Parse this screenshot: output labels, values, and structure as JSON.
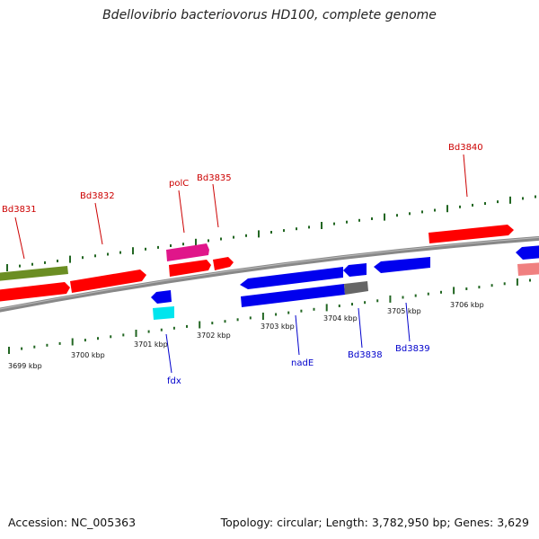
{
  "title": "Bdellovibrio bacteriovorus HD100, complete genome",
  "footer": {
    "accession": "Accession: NC_005363",
    "summary": "Topology: circular; Length: 3,782,950 bp; Genes: 3,629"
  },
  "colors": {
    "forward_label": "#cc0000",
    "reverse_label": "#0000cc",
    "backbone": "#888888",
    "tick": "#226622",
    "red_gene": "#ff0000",
    "blue_gene": "#0000ee",
    "olive_gene": "#6b8e23",
    "magenta_gene": "#e0168a",
    "cyan_gene": "#00e5ee",
    "salmon_gene": "#f08080",
    "gray_segment": "#666666"
  },
  "scale_labels": [
    {
      "text": "3699 kbp"
    },
    {
      "text": "3700 kbp"
    },
    {
      "text": "3701 kbp"
    },
    {
      "text": "3702 kbp"
    },
    {
      "text": "3703 kbp"
    },
    {
      "text": "3704 kbp"
    },
    {
      "text": "3705 kbp"
    },
    {
      "text": "3706 kbp"
    }
  ],
  "gene_labels": {
    "forward": [
      "Bd3831",
      "Bd3832",
      "polC",
      "Bd3835",
      "Bd3840"
    ],
    "reverse": [
      "fdx",
      "nadE",
      "Bd3838",
      "Bd3839"
    ]
  }
}
